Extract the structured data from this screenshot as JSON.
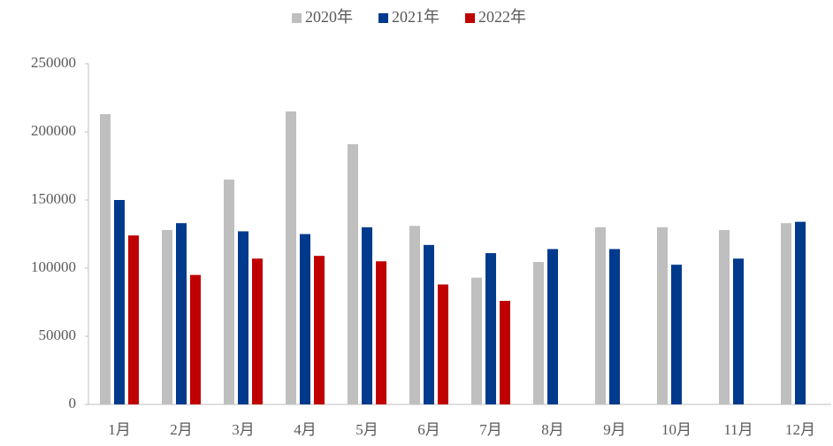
{
  "chart_data": {
    "type": "bar",
    "categories": [
      "1月",
      "2月",
      "3月",
      "4月",
      "5月",
      "6月",
      "7月",
      "8月",
      "9月",
      "10月",
      "11月",
      "12月"
    ],
    "series": [
      {
        "name": "2020年",
        "color": "#bfbfbf",
        "values": [
          213000,
          128000,
          165000,
          215000,
          191000,
          131000,
          93000,
          104500,
          130000,
          130000,
          128000,
          133000
        ]
      },
      {
        "name": "2021年",
        "color": "#003a8c",
        "values": [
          150000,
          133000,
          127000,
          125000,
          130000,
          117000,
          111000,
          114000,
          114000,
          102500,
          107000,
          134000
        ]
      },
      {
        "name": "2022年",
        "color": "#c00000",
        "values": [
          124000,
          95000,
          107000,
          109000,
          105000,
          88000,
          76000,
          null,
          null,
          null,
          null,
          null
        ]
      }
    ],
    "ylim": [
      0,
      250000
    ],
    "yticks": [
      0,
      50000,
      100000,
      150000,
      200000,
      250000
    ],
    "legend": "top"
  }
}
